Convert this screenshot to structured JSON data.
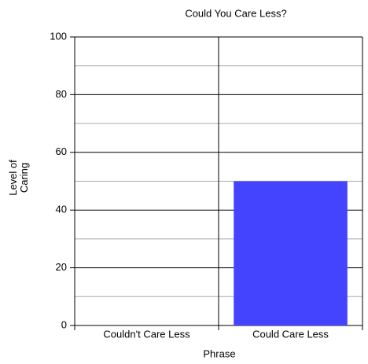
{
  "chart_data": {
    "type": "bar",
    "title": "Could You Care Less?",
    "x_label": "Phrase",
    "y_label": "Level of Caring",
    "categories": [
      "Couldn't Care Less",
      "Could Care Less"
    ],
    "values": [
      0,
      50
    ],
    "color": "#4444ff",
    "ylim": [
      0,
      100
    ],
    "yticks": [
      0,
      20,
      40,
      60,
      80,
      100
    ],
    "grid": true
  }
}
